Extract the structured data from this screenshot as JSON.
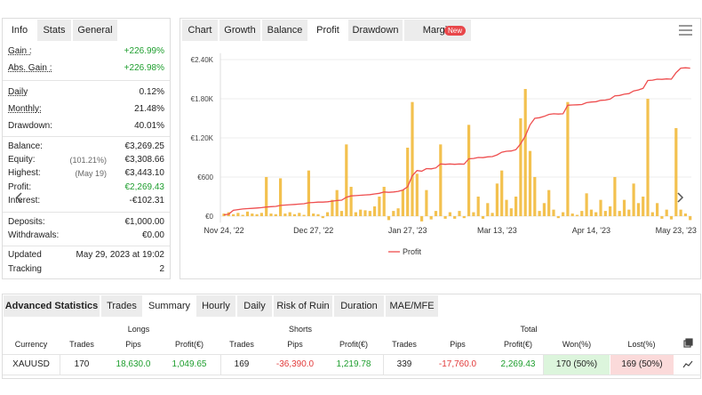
{
  "info": {
    "tabs": [
      "Info",
      "Stats",
      "General"
    ],
    "rows": [
      {
        "label": "Gain :",
        "value": "+226.99%",
        "color": "#1e9e2e"
      },
      {
        "label": "Abs. Gain :",
        "value": "+226.98%",
        "color": "#1e9e2e"
      },
      {
        "label": "Daily",
        "value": "0.12%"
      },
      {
        "label": "Monthly:",
        "value": "21.48%"
      },
      {
        "label": "Drawdown:",
        "value": "40.01%"
      },
      {
        "label": "Balance:",
        "value": "€3,269.25"
      },
      {
        "label": "Equity:",
        "note": "(101.21%)",
        "value": "€3,308.66"
      },
      {
        "label": "Highest:",
        "note": "(May 19)",
        "value": "€3,443.10"
      },
      {
        "label": "Profit:",
        "value": "€2,269.43",
        "color": "#1e9e2e"
      },
      {
        "label": "Interest:",
        "value": "-€102.31"
      },
      {
        "label": "Deposits:",
        "value": "€1,000.00"
      },
      {
        "label": "Withdrawals:",
        "value": "€0.00"
      },
      {
        "label": "Updated",
        "value": "May 29, 2023 at 19:02"
      },
      {
        "label": "Tracking",
        "value": "2"
      }
    ]
  },
  "chart_tabs": [
    "Chart",
    "Growth",
    "Balance",
    "Profit",
    "Drawdown",
    "Margin"
  ],
  "chart_badge": "New",
  "chart_data": {
    "type": "bar",
    "categories": [
      "Nov 24, '22",
      null,
      null,
      null,
      null,
      null,
      null,
      null,
      null,
      null,
      null,
      null,
      null,
      null,
      null,
      null,
      null,
      null,
      null,
      "Dec 27, '22",
      null,
      null,
      null,
      null,
      null,
      null,
      null,
      null,
      null,
      null,
      null,
      null,
      null,
      null,
      null,
      null,
      null,
      null,
      null,
      "Jan 27, '23",
      null,
      null,
      null,
      null,
      null,
      null,
      null,
      null,
      null,
      null,
      null,
      null,
      null,
      null,
      null,
      null,
      null,
      null,
      "Mar 13, '23",
      null,
      null,
      null,
      null,
      null,
      null,
      null,
      null,
      null,
      null,
      null,
      null,
      null,
      null,
      null,
      null,
      null,
      null,
      null,
      "Apr 14, '23",
      null,
      null,
      null,
      null,
      null,
      null,
      null,
      null,
      null,
      null,
      null,
      null,
      null,
      null,
      null,
      null,
      null,
      "May 23, '23",
      null,
      null,
      null
    ],
    "series": [
      {
        "type": "bar",
        "color": "#f3c14f",
        "values": [
          40,
          60,
          30,
          50,
          20,
          70,
          40,
          30,
          50,
          600,
          40,
          30,
          580,
          40,
          60,
          30,
          50,
          20,
          700,
          40,
          30,
          -30,
          60,
          250,
          400,
          80,
          1100,
          450,
          60,
          100,
          90,
          80,
          150,
          300,
          450,
          -60,
          80,
          120,
          400,
          1050,
          1750,
          650,
          -80,
          400,
          -50,
          80,
          1100,
          -40,
          60,
          -40,
          80,
          -30,
          1400,
          60,
          300,
          -40,
          200,
          50,
          500,
          700,
          250,
          120,
          300,
          1500,
          1950,
          1000,
          600,
          80,
          200,
          400,
          100,
          -30,
          60,
          1750,
          40,
          20,
          80,
          350,
          100,
          60,
          250,
          80,
          150,
          600,
          80,
          250,
          100,
          500,
          200,
          300,
          1800,
          60,
          200,
          -40,
          100,
          -50,
          1350,
          100,
          40,
          -60
        ]
      },
      {
        "name": "Profit",
        "type": "line",
        "color": "#ee4e4f",
        "values": [
          20,
          30,
          90,
          100,
          110,
          115,
          120,
          125,
          130,
          140,
          145,
          150,
          165,
          170,
          175,
          180,
          185,
          190,
          205,
          210,
          215,
          215,
          220,
          230,
          240,
          245,
          290,
          310,
          315,
          320,
          325,
          330,
          340,
          350,
          370,
          365,
          370,
          380,
          400,
          450,
          620,
          700,
          690,
          730,
          725,
          740,
          800,
          795,
          800,
          795,
          800,
          798,
          880,
          885,
          900,
          897,
          910,
          913,
          940,
          980,
          995,
          1000,
          1020,
          1110,
          1230,
          1400,
          1500,
          1510,
          1530,
          1560,
          1570,
          1565,
          1570,
          1700,
          1705,
          1707,
          1712,
          1740,
          1750,
          1755,
          1775,
          1780,
          1795,
          1845,
          1850,
          1870,
          1880,
          1920,
          1935,
          1960,
          2080,
          2085,
          2100,
          2097,
          2105,
          2100,
          2200,
          2270,
          2275,
          2269
        ]
      }
    ],
    "ylim": [
      -100,
      2500
    ],
    "yticks": [
      {
        "value": 0,
        "label": "€0"
      },
      {
        "value": 600,
        "label": "€600"
      },
      {
        "value": 1200,
        "label": "€1.20K"
      },
      {
        "value": 1800,
        "label": "€1.80K"
      },
      {
        "value": 2400,
        "label": "€2.40K"
      }
    ],
    "grid": true
  },
  "advanced_statistics": {
    "tabs": [
      "Advanced Statistics",
      "Trades",
      "Summary",
      "Hourly",
      "Daily",
      "Risk of Ruin",
      "Duration",
      "MAE/MFE"
    ],
    "groups": [
      "Longs",
      "Shorts",
      "Total"
    ],
    "columns": [
      "Currency",
      "Trades",
      "Pips",
      "Profit(€)",
      "Trades",
      "Pips",
      "Profit(€)",
      "Trades",
      "Pips",
      "Profit(€)",
      "Won(%)",
      "Lost(%)"
    ],
    "rows": [
      [
        "XAUUSD",
        "170",
        "18,630.0",
        "1,049.65",
        "169",
        "-36,390.0",
        "1,219.78",
        "339",
        "-17,760.0",
        "2,269.43",
        "170 (50%)",
        "169 (50%)"
      ]
    ]
  }
}
